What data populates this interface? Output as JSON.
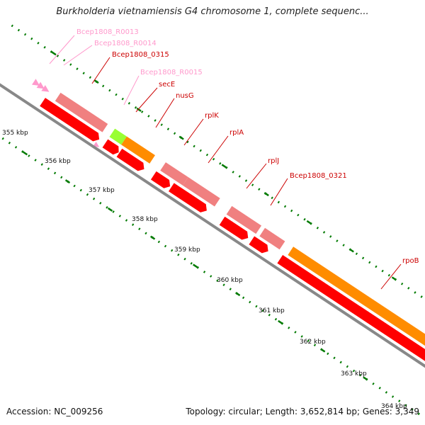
{
  "title": "Burkholderia vietnamiensis G4 chromosome 1, complete sequenc...",
  "footer": {
    "accession": "Accession: NC_009256",
    "summary": "Topology: circular; Length: 3,652,814 bp; Genes: 3,349"
  },
  "colors": {
    "cds": "#ff0000",
    "cds_light": "#f08080",
    "rna": "#ff99cc",
    "orange": "#ff8c00",
    "green": "#99ff33",
    "ticks": "#007a00",
    "backbone": "#888888"
  },
  "kbp_labels": [
    "355 kbp",
    "356 kbp",
    "357 kbp",
    "358 kbp",
    "359 kbp",
    "360 kbp",
    "361 kbp",
    "362 kbp",
    "363 kbp",
    "364 kbp"
  ],
  "gene_labels": [
    {
      "text": "Bcep1808_R0013",
      "color": "#ff99cc"
    },
    {
      "text": "Bcep1808_R0014",
      "color": "#ff99cc"
    },
    {
      "text": "Bcep1808_0315",
      "color": "#cc0000"
    },
    {
      "text": "Bcep1808_R0015",
      "color": "#ff99cc"
    },
    {
      "text": "secE",
      "color": "#cc0000"
    },
    {
      "text": "nusG",
      "color": "#cc0000"
    },
    {
      "text": "rplK",
      "color": "#cc0000"
    },
    {
      "text": "rplA",
      "color": "#cc0000"
    },
    {
      "text": "rplJ",
      "color": "#cc0000"
    },
    {
      "text": "Bcep1808_0321",
      "color": "#cc0000"
    },
    {
      "text": "rpoB",
      "color": "#cc0000"
    }
  ]
}
